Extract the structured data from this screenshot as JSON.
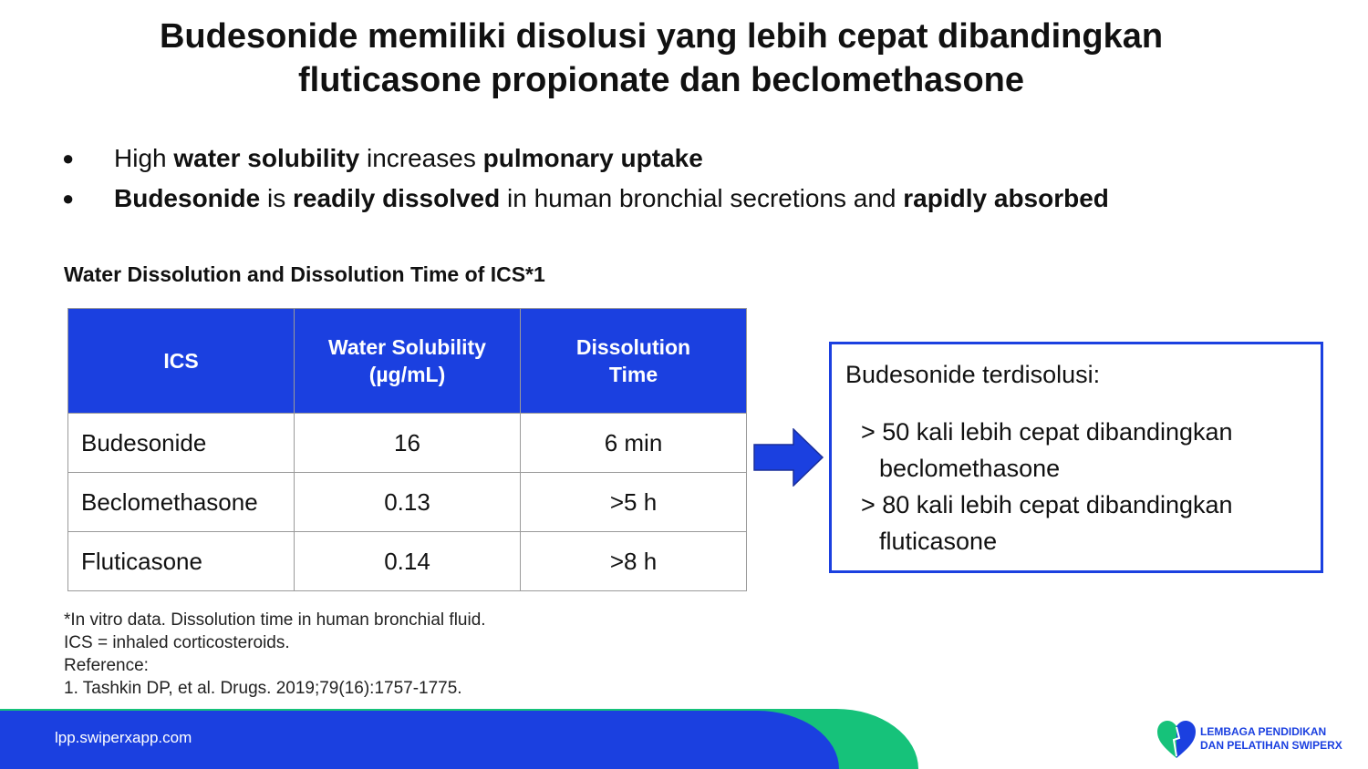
{
  "title": {
    "line1": "Budesonide memiliki disolusi yang lebih cepat dibandingkan",
    "line2": "fluticasone propionate dan beclomethasone"
  },
  "bullets": [
    {
      "parts": [
        {
          "text": "High ",
          "bold": false
        },
        {
          "text": "water solubility",
          "bold": true
        },
        {
          "text": " increases ",
          "bold": false
        },
        {
          "text": "pulmonary uptake",
          "bold": true
        }
      ]
    },
    {
      "parts": [
        {
          "text": "Budesonide",
          "bold": true
        },
        {
          "text": " is ",
          "bold": false
        },
        {
          "text": "readily dissolved",
          "bold": true
        },
        {
          "text": " in human bronchial secretions and ",
          "bold": false
        },
        {
          "text": "rapidly absorbed",
          "bold": true
        }
      ]
    }
  ],
  "bullet_symbol": "●",
  "table": {
    "title": "Water Dissolution and Dissolution Time of ICS*1",
    "headers": [
      {
        "line1": "ICS",
        "line2": ""
      },
      {
        "line1": "Water Solubility",
        "line2": "(µg/mL)"
      },
      {
        "line1": "Dissolution",
        "line2": "Time"
      }
    ],
    "rows": [
      {
        "ics": "Budesonide",
        "solubility": "16",
        "time": "6 min"
      },
      {
        "ics": "Beclomethasone",
        "solubility": "0.13",
        "time": ">5 h"
      },
      {
        "ics": "Fluticasone",
        "solubility": "0.14",
        "time": ">8 h"
      }
    ]
  },
  "callout": {
    "heading": "Budesonide terdisolusi:",
    "items": [
      {
        "line1": "> 50 kali lebih cepat dibandingkan",
        "line2": "beclomethasone"
      },
      {
        "line1": "> 80 kali lebih cepat dibandingkan",
        "line2": "fluticasone"
      }
    ]
  },
  "notes": [
    "*In vitro data. Dissolution time in human bronchial fluid.",
    "ICS = inhaled corticosteroids.",
    "Reference:",
    "1. Tashkin DP, et al. Drugs. 2019;79(16):1757-1775."
  ],
  "footer": {
    "url": "lpp.swiperxapp.com",
    "logo_line1": "LEMBAGA PENDIDIKAN",
    "logo_line2": "DAN PELATIHAN SWIPERX"
  },
  "colors": {
    "accent_blue": "#1b40e0",
    "accent_green": "#16c27a"
  },
  "icons": {
    "arrow": "right-arrow-icon",
    "logo": "heart-logo-icon"
  }
}
